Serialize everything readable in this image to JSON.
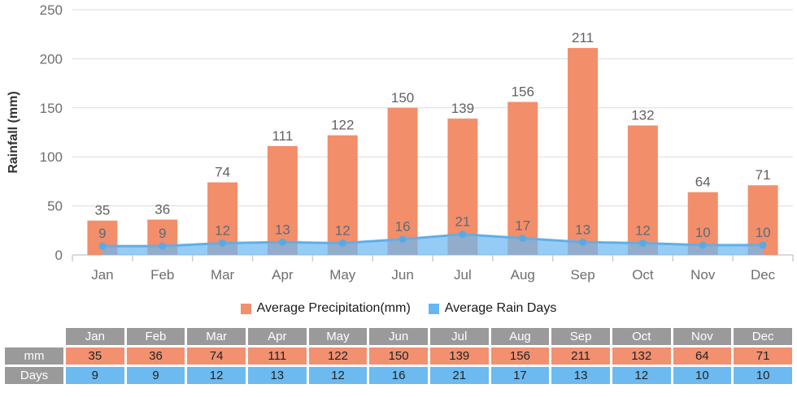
{
  "chart_data": {
    "type": "bar",
    "title": "",
    "categories": [
      "Jan",
      "Feb",
      "Mar",
      "Apr",
      "May",
      "Jun",
      "Jul",
      "Aug",
      "Sep",
      "Oct",
      "Nov",
      "Dec"
    ],
    "series": [
      {
        "name": "Average Precipitation(mm)",
        "type": "bar",
        "values": [
          35,
          36,
          74,
          111,
          122,
          150,
          139,
          156,
          211,
          132,
          64,
          71
        ],
        "color": "#F28E6A",
        "legend_color": "#F0916C"
      },
      {
        "name": "Average Rain Days",
        "type": "area",
        "values": [
          9,
          9,
          12,
          13,
          12,
          16,
          21,
          17,
          13,
          12,
          10,
          10
        ],
        "fill_color": "#6CB9F2",
        "fill_opacity": 0.72,
        "line_color": "#62AEE6",
        "marker_color": "#5AA9E4",
        "legend_color": "#66B7EE"
      }
    ],
    "xlabel": "",
    "ylabel": "Rainfall (mm)",
    "yticks": [
      0,
      50,
      100,
      150,
      200,
      250
    ],
    "ylim": [
      0,
      250
    ],
    "grid": true,
    "legend_position": "bottom",
    "data_labels": true
  },
  "table": {
    "corner_label": "",
    "columns": [
      "Jan",
      "Feb",
      "Mar",
      "Apr",
      "May",
      "Jun",
      "Jul",
      "Aug",
      "Sep",
      "Oct",
      "Nov",
      "Dec"
    ],
    "rows": [
      {
        "label": "mm",
        "values": [
          35,
          36,
          74,
          111,
          122,
          150,
          139,
          156,
          211,
          132,
          64,
          71
        ],
        "color": "#F29070"
      },
      {
        "label": "Days",
        "values": [
          9,
          9,
          12,
          13,
          12,
          16,
          21,
          17,
          13,
          12,
          10,
          10
        ],
        "color": "#6CBAF0"
      }
    ],
    "header_color": "#9A9A9A"
  }
}
